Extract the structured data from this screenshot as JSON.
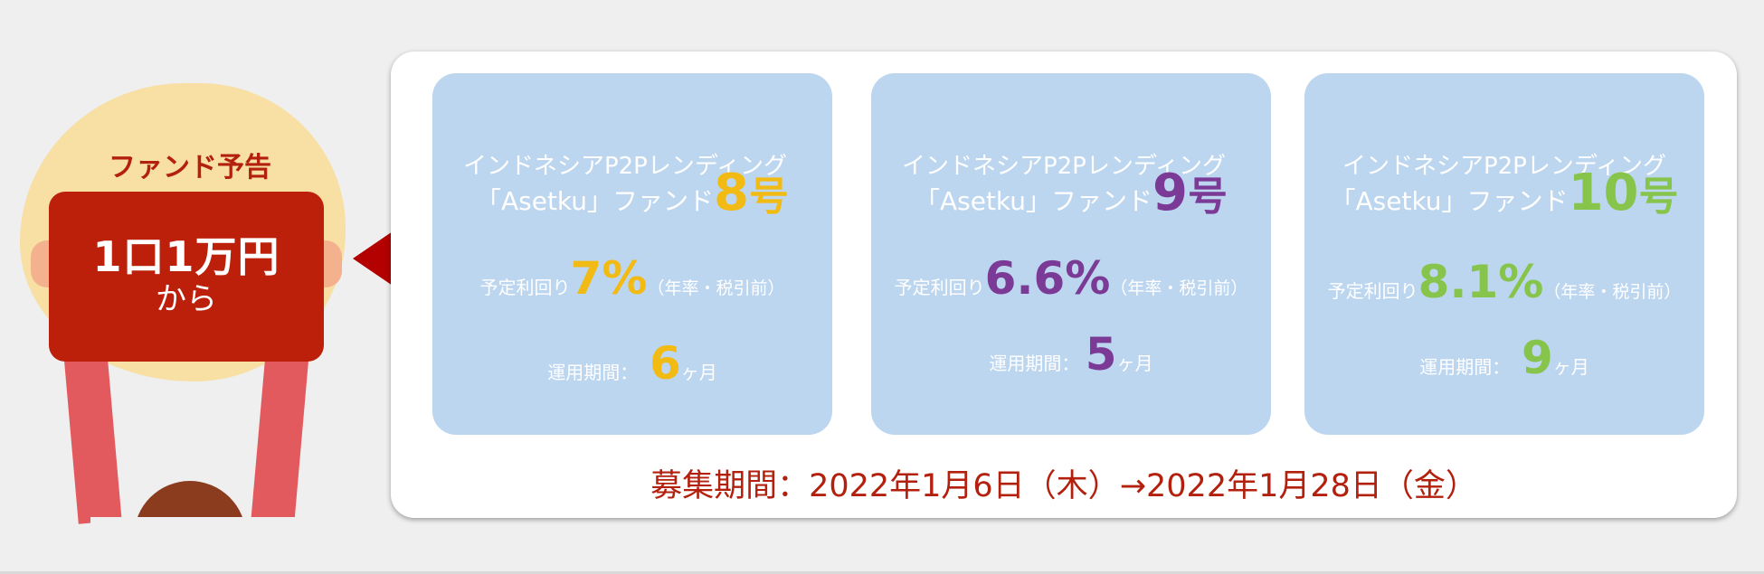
{
  "promo": {
    "title": "ファンド予告",
    "board_amount": "1口1万円",
    "board_from": "から"
  },
  "funds": [
    {
      "line1": "インドネシアP2Pレンディング",
      "name_prefix": "「Asetku」ファンド",
      "number": "8",
      "go": "号",
      "rate_label": "予定利回り",
      "rate": "7%",
      "rate_note": "（年率・税引前）",
      "term_label": "運用期間：",
      "term": "6",
      "term_unit": "ヶ月",
      "accent": "#f2bb14"
    },
    {
      "line1": "インドネシアP2Pレンディング",
      "name_prefix": "「Asetku」ファンド",
      "number": "9",
      "go": "号",
      "rate_label": "予定利回り",
      "rate": "6.6%",
      "rate_note": "（年率・税引前）",
      "term_label": "運用期間：",
      "term": "5",
      "term_unit": "ヶ月",
      "accent": "#7a3a96"
    },
    {
      "line1": "インドネシアP2Pレンディング",
      "name_prefix": "「Asetku」ファンド",
      "number": "10",
      "go": "号",
      "rate_label": "予定利回り",
      "rate": "8.1%",
      "rate_note": "（年率・税引前）",
      "term_label": "運用期間：",
      "term": "9",
      "term_unit": "ヶ月",
      "accent": "#86c44c"
    }
  ],
  "recruitment_period": "募集期間：2022年1月6日（木）→2022年1月28日（金）"
}
